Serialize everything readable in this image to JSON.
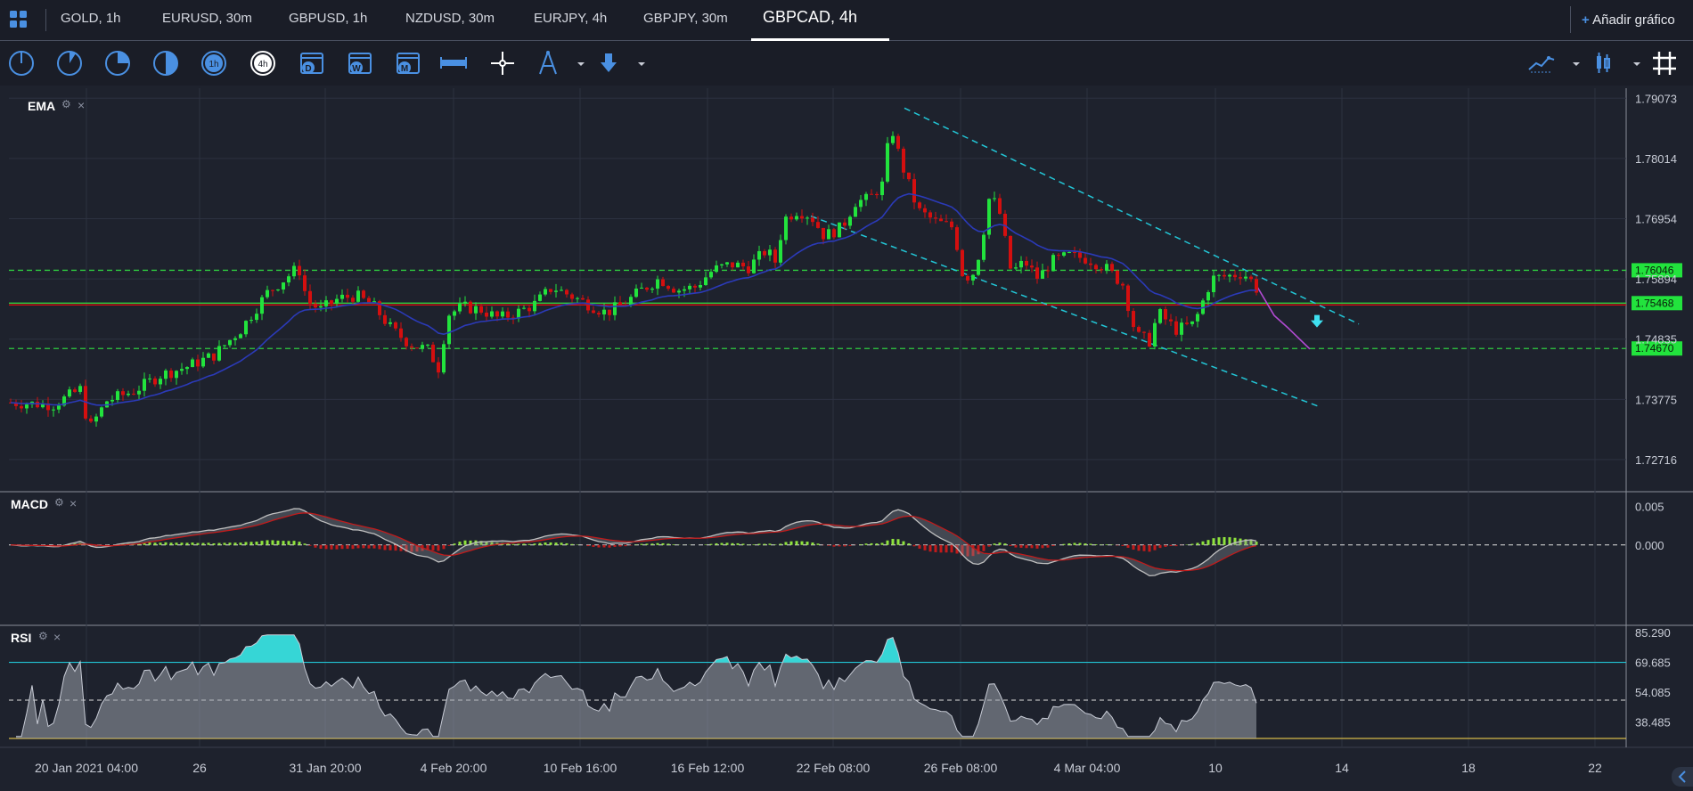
{
  "tabs": [
    {
      "label": "GOLD, 1h"
    },
    {
      "label": "EURUSD, 30m"
    },
    {
      "label": "GBPUSD, 1h"
    },
    {
      "label": "NZDUSD, 30m"
    },
    {
      "label": "EURJPY, 4h"
    },
    {
      "label": "GBPJPY, 30m"
    },
    {
      "label": "GBPCAD, 4h"
    }
  ],
  "add_chart": {
    "plus": "+",
    "label": "Añadir gráfico"
  },
  "toolbar_icons": [
    "1m",
    "5m",
    "15m",
    "30m",
    "1h",
    "4h",
    "D",
    "W",
    "M",
    "crosshair",
    "drawing",
    "arrow-down"
  ],
  "toolbar_icon_text": {
    "h1": "1h",
    "h4": "4h",
    "d": "D",
    "w": "W",
    "m": "M"
  },
  "panels": {
    "price": {
      "label": "EMA",
      "close_glyph": "×"
    },
    "macd": {
      "label": "MACD",
      "close_glyph": "×"
    },
    "rsi": {
      "label": "RSI",
      "close_glyph": "×"
    }
  },
  "chart_data": {
    "type": "candlestick",
    "symbol": "GBPCAD, 4h",
    "price_axis_labels": [
      "1.79073",
      "1.78014",
      "1.76954",
      "1.75894",
      "1.74835",
      "1.73775",
      "1.72716"
    ],
    "price_range": [
      1.7215,
      1.7925
    ],
    "horizontal_levels": [
      {
        "value": 1.76046,
        "label": "1.76046",
        "style": "dashed",
        "color": "#2ecc40"
      },
      {
        "value": 1.75468,
        "label": "1.75468",
        "style": "solid",
        "color": "#2ecc40"
      },
      {
        "value": 1.7467,
        "label": "1.74670",
        "style": "dashed",
        "color": "#2ecc40"
      }
    ],
    "x_axis_labels": [
      "20 Jan 2021 04:00",
      "26",
      "31 Jan 20:00",
      "4 Feb 20:00",
      "10 Feb 16:00",
      "16 Feb 12:00",
      "22 Feb 08:00",
      "26 Feb 08:00",
      "4 Mar 04:00",
      "10",
      "14",
      "18",
      "22"
    ],
    "ema_indicator": "EMA",
    "macd_axis_labels": [
      "0.005",
      "0.000"
    ],
    "macd_range": [
      -0.009,
      0.0055
    ],
    "rsi_axis_labels": [
      "85.290",
      "69.685",
      "54.085",
      "38.485"
    ],
    "rsi_range": [
      30,
      85.29
    ],
    "rsi_levels": {
      "upper": 69.685,
      "middle": 50,
      "lower": 30
    },
    "colors": {
      "up": "#22e33d",
      "down": "#d40f0f",
      "ema": "#2b3ab8",
      "channel": "#22c6d6",
      "forecast": "#b24bd3",
      "rsi_fill_top": "#36d6d6",
      "macd_line": "#c0c0c0",
      "signal_line": "#c11b1b"
    }
  }
}
